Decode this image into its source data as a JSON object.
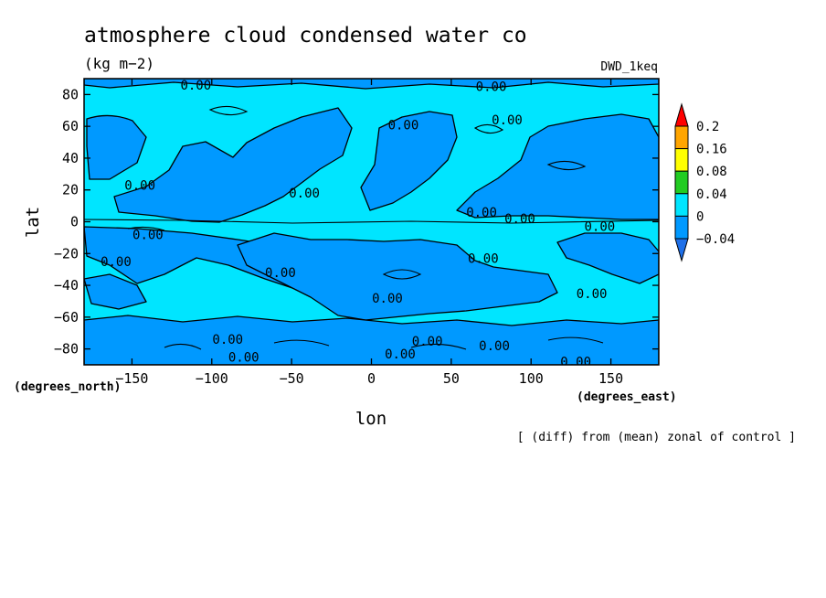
{
  "chart_data": {
    "type": "heatmap",
    "title": "atmosphere cloud condensed water co",
    "units": "(kg m−2)",
    "model_label": "DWD_1keq",
    "xlabel": "lon",
    "ylabel": "lat",
    "x_units": "(degrees_east)",
    "y_units": "(degrees_north)",
    "xlim": [
      -180,
      180
    ],
    "ylim": [
      -90,
      90
    ],
    "x_ticks": [
      -150,
      -100,
      -50,
      0,
      50,
      100,
      150
    ],
    "y_ticks": [
      -80,
      -60,
      -40,
      -20,
      0,
      20,
      40,
      60,
      80
    ],
    "colorbar": {
      "levels": [
        "0.2",
        "0.16",
        "0.08",
        "0.04",
        "0",
        "−0.04"
      ],
      "colors": [
        "#ff0000",
        "#ffa500",
        "#ffff00",
        "#22cc22",
        "#00e5ff",
        "#0099ff",
        "#1e6fe8"
      ]
    },
    "contour_label": "0.00",
    "contour_label_positions": [
      {
        "lon": -110,
        "lat": 86
      },
      {
        "lon": 75,
        "lat": 85
      },
      {
        "lon": 85,
        "lat": 64
      },
      {
        "lon": 20,
        "lat": 61
      },
      {
        "lon": -145,
        "lat": 23
      },
      {
        "lon": -42,
        "lat": 18
      },
      {
        "lon": 69,
        "lat": 6
      },
      {
        "lon": 93,
        "lat": 2
      },
      {
        "lon": 143,
        "lat": -3
      },
      {
        "lon": -140,
        "lat": -8
      },
      {
        "lon": -160,
        "lat": -25
      },
      {
        "lon": -57,
        "lat": -32
      },
      {
        "lon": 70,
        "lat": -23
      },
      {
        "lon": 10,
        "lat": -48
      },
      {
        "lon": 138,
        "lat": -45
      },
      {
        "lon": -90,
        "lat": -74
      },
      {
        "lon": -80,
        "lat": -85
      },
      {
        "lon": 18,
        "lat": -83
      },
      {
        "lon": 35,
        "lat": -75
      },
      {
        "lon": 77,
        "lat": -78
      },
      {
        "lon": 128,
        "lat": -88
      }
    ],
    "colorbar_ends": [
      "▲",
      "▼"
    ],
    "note": "[ (diff) from (mean) zonal of control ]"
  }
}
